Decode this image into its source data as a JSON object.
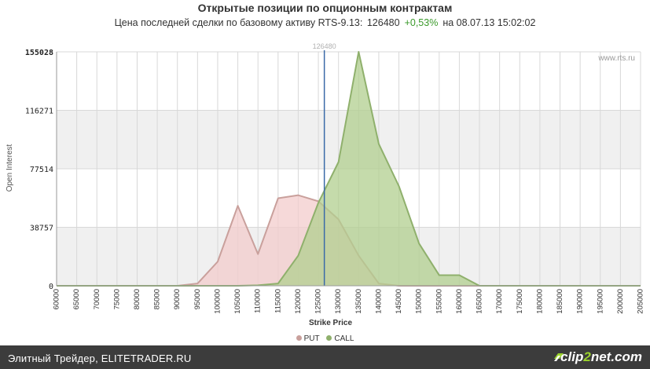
{
  "page": {
    "title": "Открытые позиции по опционным контрактам",
    "subtitle_prefix": "Цена последней сделки по базовому активу RTS-9.13:",
    "last_price": "126480",
    "change": "+0,53%",
    "date_text": "на 08.07.13 15:02:02",
    "watermark": "www.rts.ru",
    "footer_text": "Элитный Трейдер, ELITETRADER.RU",
    "logo_main": "clip",
    "logo_accent": "2",
    "logo_tail": "net.com"
  },
  "colors": {
    "put_fill": "#f3cccc",
    "put_line": "#c9a09c",
    "call_fill": "#b2cf8f",
    "call_line": "#8fb06c",
    "marker_line": "#3a6aa8",
    "band": "#f0f0f0",
    "grid": "#d8d8d8"
  },
  "chart_data": {
    "type": "area",
    "xlabel": "Strike Price",
    "ylabel": "Open Interest",
    "x": [
      60000,
      65000,
      70000,
      75000,
      80000,
      85000,
      90000,
      95000,
      100000,
      105000,
      110000,
      115000,
      120000,
      125000,
      130000,
      135000,
      140000,
      145000,
      150000,
      155000,
      160000,
      165000,
      170000,
      175000,
      180000,
      185000,
      190000,
      195000,
      200000,
      205000
    ],
    "xlim": [
      60000,
      205000
    ],
    "ylim": [
      0,
      155028
    ],
    "yticks": [
      0,
      38757,
      77514,
      116271,
      155028
    ],
    "marker": {
      "x": 126480,
      "label": "126480"
    },
    "series": [
      {
        "name": "PUT",
        "values": [
          0,
          0,
          0,
          0,
          0,
          0,
          0,
          1500,
          16000,
          53000,
          21000,
          58000,
          60000,
          56000,
          44000,
          20000,
          1500,
          0,
          0,
          0,
          0,
          0,
          0,
          0,
          0,
          0,
          0,
          0,
          0,
          0
        ]
      },
      {
        "name": "CALL",
        "values": [
          0,
          0,
          0,
          0,
          0,
          0,
          0,
          0,
          0,
          0,
          300,
          1500,
          20000,
          55000,
          82000,
          155028,
          94000,
          66000,
          28000,
          7000,
          7000,
          0,
          0,
          0,
          0,
          0,
          0,
          0,
          0,
          0
        ]
      }
    ]
  }
}
